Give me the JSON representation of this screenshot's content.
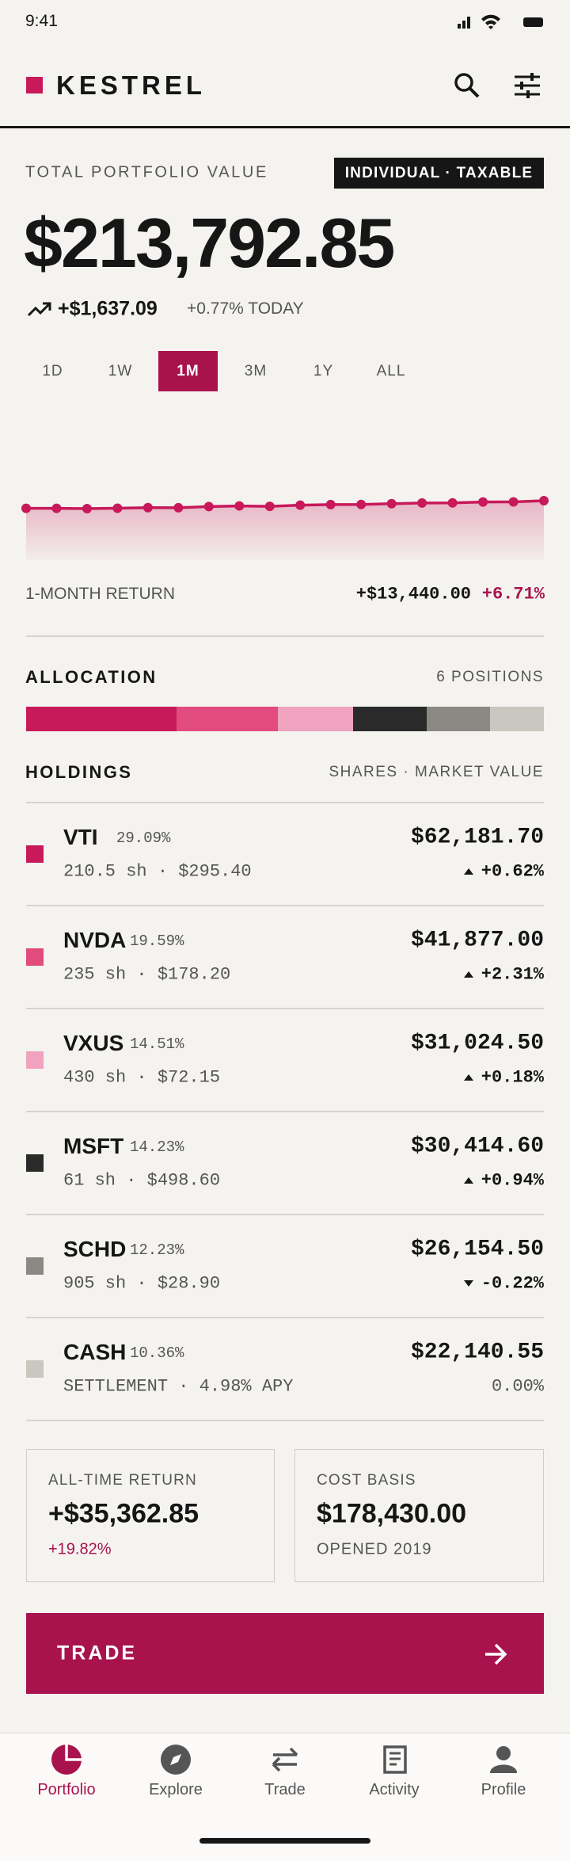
{
  "status": {
    "time": "9:41"
  },
  "header": {
    "brand": "KESTREL"
  },
  "summary": {
    "label": "TOTAL PORTFOLIO VALUE",
    "account": "INDIVIDUAL · TAXABLE",
    "value": "$213,792.85",
    "change": "+$1,637.09",
    "change_today": "+0.77% TODAY"
  },
  "periods": [
    "1D",
    "1W",
    "1M",
    "3M",
    "1Y",
    "ALL"
  ],
  "selected_period": "1M",
  "chart_data": {
    "type": "line",
    "color": "#c8195a",
    "values": [
      200353,
      200400,
      199800,
      200500,
      201500,
      201400,
      203500,
      204600,
      203800,
      205900,
      207000,
      207100,
      208500,
      209800,
      209900,
      211500,
      211700,
      213793
    ]
  },
  "return": {
    "label": "1-MONTH RETURN",
    "value": "+$13,440.00",
    "pct": "+6.71%"
  },
  "allocation": {
    "title": "ALLOCATION",
    "positions": "6 POSITIONS"
  },
  "holdings": {
    "title": "HOLDINGS",
    "columns": "SHARES · MARKET VALUE",
    "rows": [
      {
        "ticker": "VTI",
        "weight": 29.09,
        "weight_label": "29.09%",
        "detail": "210.5 sh · $295.40",
        "value": "$62,181.70",
        "change": "+0.62%",
        "direction": "up",
        "color": "#c8195a"
      },
      {
        "ticker": "NVDA",
        "weight": 19.59,
        "weight_label": "19.59%",
        "detail": "235 sh · $178.20",
        "value": "$41,877.00",
        "change": "+2.31%",
        "direction": "up",
        "color": "#e14b7e"
      },
      {
        "ticker": "VXUS",
        "weight": 14.51,
        "weight_label": "14.51%",
        "detail": "430 sh · $72.15",
        "value": "$31,024.50",
        "change": "+0.18%",
        "direction": "up",
        "color": "#f0a2be"
      },
      {
        "ticker": "MSFT",
        "weight": 14.23,
        "weight_label": "14.23%",
        "detail": "61 sh · $498.60",
        "value": "$30,414.60",
        "change": "+0.94%",
        "direction": "up",
        "color": "#2a2a2a"
      },
      {
        "ticker": "SCHD",
        "weight": 12.23,
        "weight_label": "12.23%",
        "detail": "905 sh · $28.90",
        "value": "$26,154.50",
        "change": "-0.22%",
        "direction": "down",
        "color": "#8a8984"
      },
      {
        "ticker": "CASH",
        "weight": 10.36,
        "weight_label": "10.36%",
        "detail": "SETTLEMENT · 4.98% APY",
        "value": "$22,140.55",
        "change": "0.00%",
        "direction": "none",
        "color": "#c9c7c0"
      }
    ]
  },
  "cards": [
    {
      "label": "ALL-TIME RETURN",
      "value": "+$35,362.85",
      "sub": "+19.82%",
      "accent": true
    },
    {
      "label": "COST BASIS",
      "value": "$178,430.00",
      "sub": "OPENED 2019",
      "accent": false
    }
  ],
  "trade_button": "TRADE",
  "nav": [
    {
      "label": "Portfolio",
      "icon": "pie",
      "active": true
    },
    {
      "label": "Explore",
      "icon": "compass",
      "active": false
    },
    {
      "label": "Trade",
      "icon": "swap",
      "active": false
    },
    {
      "label": "Activity",
      "icon": "receipt",
      "active": false
    },
    {
      "label": "Profile",
      "icon": "person",
      "active": false
    }
  ]
}
